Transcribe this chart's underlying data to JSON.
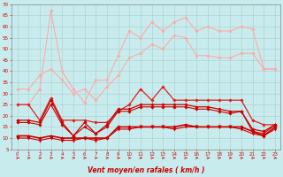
{
  "x": [
    0,
    1,
    2,
    3,
    4,
    5,
    6,
    7,
    8,
    9,
    10,
    11,
    12,
    13,
    14,
    15,
    16,
    17,
    18,
    19,
    20,
    21,
    22,
    23
  ],
  "series": [
    {
      "name": "rafales_max",
      "color": "#ffaaaa",
      "marker": "D",
      "markersize": 1.8,
      "linewidth": 0.8,
      "values": [
        25,
        25,
        32,
        67,
        40,
        32,
        26,
        36,
        36,
        47,
        58,
        55,
        62,
        58,
        62,
        64,
        58,
        60,
        58,
        58,
        60,
        59,
        41,
        41
      ]
    },
    {
      "name": "rafales_moy",
      "color": "#ffaaaa",
      "marker": "D",
      "markersize": 1.8,
      "linewidth": 0.8,
      "values": [
        32,
        32,
        38,
        41,
        36,
        30,
        32,
        27,
        33,
        38,
        46,
        48,
        52,
        50,
        56,
        55,
        47,
        47,
        46,
        46,
        48,
        48,
        41,
        41
      ]
    },
    {
      "name": "vent_max_line",
      "color": "#dd2222",
      "marker": "D",
      "markersize": 1.8,
      "linewidth": 0.9,
      "values": [
        25,
        25,
        18,
        28,
        18,
        18,
        18,
        17,
        17,
        22,
        25,
        32,
        27,
        33,
        27,
        27,
        27,
        27,
        27,
        27,
        27,
        18,
        16,
        16
      ]
    },
    {
      "name": "vent_moy_upper",
      "color": "#cc0000",
      "marker": "D",
      "markersize": 1.8,
      "linewidth": 0.9,
      "values": [
        18,
        18,
        17,
        27,
        17,
        11,
        17,
        12,
        16,
        23,
        23,
        25,
        25,
        25,
        25,
        25,
        24,
        24,
        23,
        22,
        22,
        14,
        13,
        16
      ]
    },
    {
      "name": "vent_moy_lower",
      "color": "#cc0000",
      "marker": "D",
      "markersize": 1.8,
      "linewidth": 0.8,
      "values": [
        17,
        17,
        16,
        25,
        16,
        11,
        15,
        12,
        15,
        22,
        22,
        24,
        24,
        24,
        24,
        24,
        23,
        23,
        22,
        21,
        22,
        13,
        12,
        16
      ]
    },
    {
      "name": "vent_min",
      "color": "#cc0000",
      "marker": "v",
      "markersize": 2.5,
      "linewidth": 0.8,
      "values": [
        10,
        10,
        9,
        10,
        9,
        9,
        10,
        9,
        10,
        14,
        14,
        15,
        15,
        15,
        14,
        15,
        15,
        15,
        15,
        15,
        14,
        12,
        11,
        14
      ]
    },
    {
      "name": "vent_base",
      "color": "#cc0000",
      "marker": "D",
      "markersize": 1.8,
      "linewidth": 1.2,
      "values": [
        11,
        11,
        10,
        11,
        10,
        10,
        10,
        10,
        10,
        15,
        15,
        15,
        15,
        15,
        15,
        16,
        15,
        15,
        15,
        15,
        15,
        13,
        11,
        15
      ]
    }
  ],
  "xlabel": "Vent moyen/en rafales ( km/h )",
  "ylim": [
    5,
    70
  ],
  "yticks": [
    5,
    10,
    15,
    20,
    25,
    30,
    35,
    40,
    45,
    50,
    55,
    60,
    65,
    70
  ],
  "xticks": [
    0,
    1,
    2,
    3,
    4,
    5,
    6,
    7,
    8,
    9,
    10,
    11,
    12,
    13,
    14,
    15,
    16,
    17,
    18,
    19,
    20,
    21,
    22,
    23
  ],
  "bg_color": "#c8eced",
  "grid_color": "#aacccc",
  "xlabel_color": "#cc0000",
  "tick_color": "#cc0000",
  "arrow_color": "#cc0000",
  "spine_color": "#888888"
}
